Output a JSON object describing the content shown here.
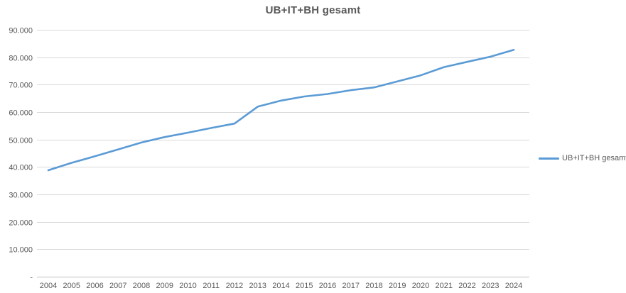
{
  "title": "UB+IT+BH gesamt",
  "legend": {
    "label": "UB+IT+BH gesamt"
  },
  "colors": {
    "line": "#5B9BD5",
    "gridline": "#D9D9D9",
    "axis_line": "#BFBFBF",
    "text": "#595959",
    "title_text": "#595959",
    "background": "#FFFFFF"
  },
  "chart_data": {
    "type": "line",
    "title": "UB+IT+BH gesamt",
    "categories": [
      2004,
      2005,
      2006,
      2007,
      2008,
      2009,
      2010,
      2011,
      2012,
      2013,
      2014,
      2015,
      2016,
      2017,
      2018,
      2019,
      2020,
      2021,
      2022,
      2023,
      2024
    ],
    "series": [
      {
        "name": "UB+IT+BH gesamt",
        "values": [
          38800,
          41500,
          43900,
          46400,
          48900,
          50900,
          52500,
          54200,
          55800,
          62000,
          64200,
          65700,
          66600,
          68000,
          69000,
          71200,
          73400,
          76400,
          78300,
          80200,
          82700
        ]
      }
    ],
    "xlabel": "",
    "ylabel": "",
    "ylim": [
      0,
      90000
    ],
    "ytick_interval": 10000,
    "ytick_labels": [
      "-",
      "10.000",
      "20.000",
      "30.000",
      "40.000",
      "50.000",
      "60.000",
      "70.000",
      "80.000",
      "90.000"
    ],
    "grid": true,
    "legend_position": "right"
  }
}
